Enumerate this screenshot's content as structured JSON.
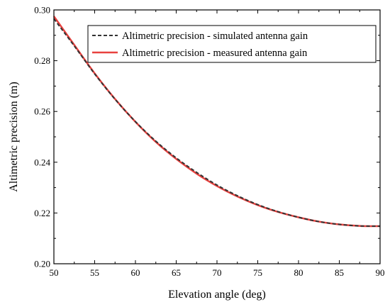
{
  "chart_data": {
    "type": "line",
    "xlabel": "Elevation angle (deg)",
    "ylabel": "Altimetric precision (m)",
    "xlim": [
      50,
      90
    ],
    "ylim": [
      0.2,
      0.3
    ],
    "x_ticks": [
      "50",
      "55",
      "60",
      "65",
      "70",
      "75",
      "80",
      "85",
      "90"
    ],
    "y_ticks": [
      "0.20",
      "0.22",
      "0.24",
      "0.26",
      "0.28",
      "0.30"
    ],
    "grid": false,
    "legend_position": "top-right",
    "series": [
      {
        "name": "Altimetric precision - simulated antenna gain",
        "color": "#333333",
        "style": "dashed",
        "x": [
          50,
          52.5,
          55,
          57.5,
          60,
          62.5,
          65,
          67.5,
          70,
          72.5,
          75,
          77.5,
          80,
          82.5,
          85,
          87.5,
          90
        ],
        "y": [
          0.2965,
          0.2858,
          0.2748,
          0.2648,
          0.256,
          0.2483,
          0.2417,
          0.236,
          0.231,
          0.2268,
          0.2233,
          0.2205,
          0.2183,
          0.2166,
          0.2155,
          0.2149,
          0.2148
        ]
      },
      {
        "name": "Altimetric precision - measured antenna gain",
        "color": "#e8423f",
        "style": "solid",
        "x": [
          50,
          52.5,
          55,
          57.5,
          60,
          62.5,
          65,
          67.5,
          70,
          72.5,
          75,
          77.5,
          80,
          82.5,
          85,
          87.5,
          90
        ],
        "y": [
          0.2975,
          0.2862,
          0.275,
          0.2649,
          0.2559,
          0.248,
          0.2413,
          0.2355,
          0.2306,
          0.2265,
          0.2231,
          0.2204,
          0.2183,
          0.2166,
          0.2155,
          0.2149,
          0.2148
        ]
      }
    ]
  }
}
